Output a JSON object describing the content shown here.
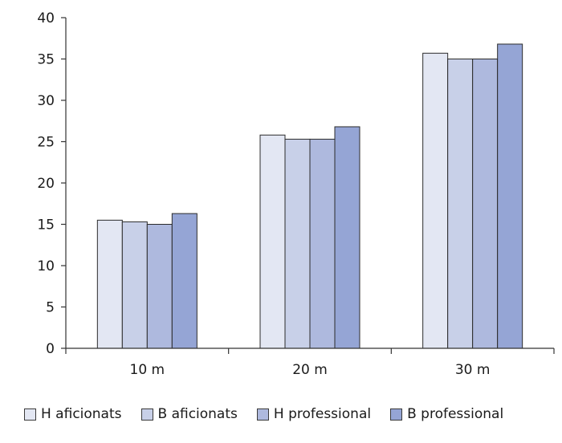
{
  "chart_data": {
    "type": "bar",
    "title": "",
    "xlabel": "",
    "ylabel": "",
    "categories": [
      "10 m",
      "20 m",
      "30 m"
    ],
    "ylim": [
      0,
      40
    ],
    "yticks": [
      "0",
      "5",
      "10",
      "15",
      "20",
      "25",
      "30",
      "35",
      "40"
    ],
    "grid": false,
    "legend_position": "bottom",
    "series": [
      {
        "name": "H aficionats",
        "color": "#e3e7f3",
        "values": [
          15.5,
          25.8,
          35.7
        ]
      },
      {
        "name": "B aficionats",
        "color": "#c8d0e8",
        "values": [
          15.3,
          25.3,
          35.0
        ]
      },
      {
        "name": "H professional",
        "color": "#aeb9de",
        "values": [
          15.0,
          25.3,
          35.0
        ]
      },
      {
        "name": "B professional",
        "color": "#95a5d5",
        "values": [
          16.3,
          26.8,
          36.8
        ]
      }
    ]
  }
}
